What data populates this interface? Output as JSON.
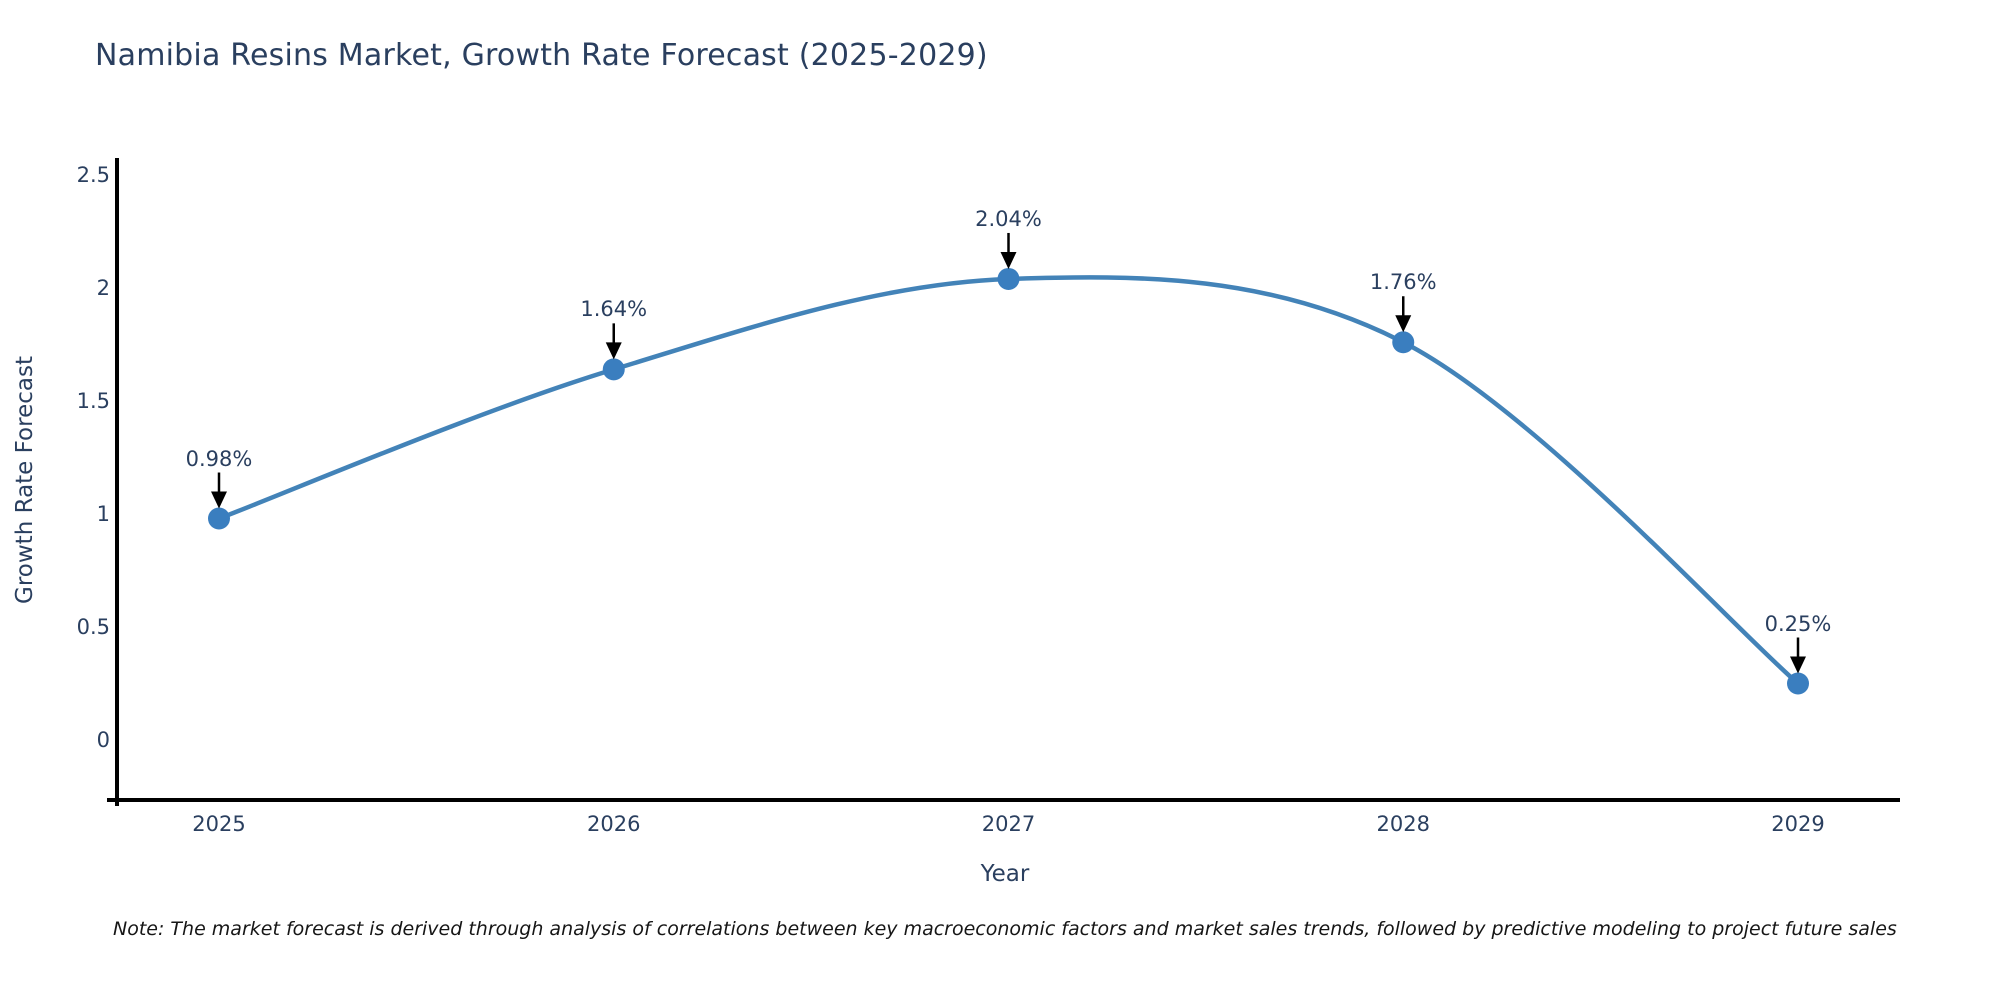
{
  "note": "Note: The market forecast is derived through analysis of correlations between key macroeconomic factors and market sales trends, followed by predictive modeling to project future sales",
  "chart_data": {
    "type": "line",
    "title": "Namibia Resins Market, Growth Rate Forecast (2025-2029)",
    "xlabel": "Year",
    "ylabel": "Growth Rate Forecast",
    "x": [
      "2025",
      "2026",
      "2027",
      "2028",
      "2029"
    ],
    "values": [
      0.98,
      1.64,
      2.04,
      1.76,
      0.25
    ],
    "point_labels": [
      "0.98%",
      "1.64%",
      "2.04%",
      "1.76%",
      "0.25%"
    ],
    "ytick_labels": [
      "0",
      "0.5",
      "1",
      "1.5",
      "2",
      "2.5"
    ],
    "ytick_values": [
      0,
      0.5,
      1,
      1.5,
      2,
      2.5
    ],
    "ylim": [
      -0.27,
      2.58
    ],
    "grid": false,
    "legend": "none",
    "line_shape": "spline",
    "annotation_style": "value label with downward black arrow to each point",
    "colors": {
      "line": "#4383b8",
      "marker": "#3a7ebf",
      "axis": "#000000",
      "text": "#2a3f5f",
      "arrow": "#000000",
      "background": "#ffffff"
    }
  }
}
